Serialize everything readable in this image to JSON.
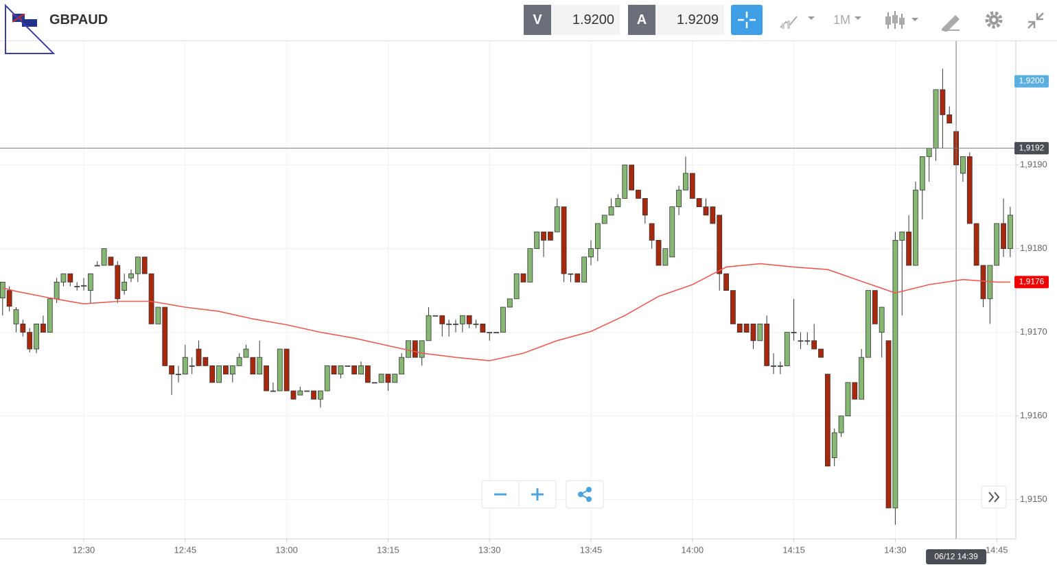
{
  "toolbar": {
    "symbol": "GBPAUD",
    "bid_label": "V",
    "bid": "1.9200",
    "ask_label": "A",
    "ask": "1.9209",
    "timeframe": "1M"
  },
  "chart_data": {
    "type": "candlestick",
    "up_color": "#86b874",
    "down_color": "#a8280e",
    "grid": true,
    "x": [
      "12:18",
      "12:19",
      "12:20",
      "12:21",
      "12:22",
      "12:23",
      "12:24",
      "12:25",
      "12:26",
      "12:27",
      "12:28",
      "12:29",
      "12:30",
      "12:31",
      "12:32",
      "12:33",
      "12:34",
      "12:35",
      "12:36",
      "12:37",
      "12:38",
      "12:39",
      "12:40",
      "12:41",
      "12:42",
      "12:43",
      "12:44",
      "12:45",
      "12:46",
      "12:47",
      "12:48",
      "12:49",
      "12:50",
      "12:51",
      "12:52",
      "12:53",
      "12:54",
      "12:55",
      "12:56",
      "12:57",
      "12:58",
      "12:59",
      "13:00",
      "13:01",
      "13:02",
      "13:03",
      "13:04",
      "13:05",
      "13:06",
      "13:07",
      "13:08",
      "13:09",
      "13:10",
      "13:11",
      "13:12",
      "13:13",
      "13:14",
      "13:15",
      "13:16",
      "13:17",
      "13:18",
      "13:19",
      "13:20",
      "13:21",
      "13:22",
      "13:23",
      "13:24",
      "13:25",
      "13:26",
      "13:27",
      "13:28",
      "13:29",
      "13:30",
      "13:31",
      "13:32",
      "13:33",
      "13:34",
      "13:35",
      "13:36",
      "13:37",
      "13:38",
      "13:39",
      "13:40",
      "13:41",
      "13:42",
      "13:43",
      "13:44",
      "13:45",
      "13:46",
      "13:47",
      "13:48",
      "13:49",
      "13:50",
      "13:51",
      "13:52",
      "13:53",
      "13:54",
      "13:55",
      "13:56",
      "13:57",
      "13:58",
      "13:59",
      "14:00",
      "14:01",
      "14:02",
      "14:03",
      "14:04",
      "14:05",
      "14:06",
      "14:07",
      "14:08",
      "14:09",
      "14:10",
      "14:11",
      "14:12",
      "14:13",
      "14:14",
      "14:15",
      "14:16",
      "14:17",
      "14:18",
      "14:19",
      "14:20",
      "14:21",
      "14:22",
      "14:23",
      "14:24",
      "14:25",
      "14:26",
      "14:27",
      "14:28",
      "14:29",
      "14:30",
      "14:31",
      "14:32",
      "14:33",
      "14:34",
      "14:35",
      "14:36",
      "14:37",
      "14:38",
      "14:39",
      "14:40",
      "14:41",
      "14:42",
      "14:43",
      "14:44",
      "14:45",
      "14:46",
      "14:47"
    ],
    "ohlc": [
      [
        1.91741,
        1.9176,
        1.9172,
        1.9176
      ],
      [
        1.9175,
        1.91755,
        1.91725,
        1.91731
      ],
      [
        1.9171,
        1.9173,
        1.917,
        1.91727
      ],
      [
        1.9171,
        1.91715,
        1.91695,
        1.917
      ],
      [
        1.917,
        1.91705,
        1.91676,
        1.9168
      ],
      [
        1.9168,
        1.9171,
        1.91675,
        1.9171
      ],
      [
        1.9171,
        1.9172,
        1.917,
        1.917
      ],
      [
        1.917,
        1.9174,
        1.917,
        1.9174
      ],
      [
        1.9174,
        1.91765,
        1.91735,
        1.9176
      ],
      [
        1.9176,
        1.9177,
        1.91755,
        1.9177
      ],
      [
        1.9177,
        1.9177,
        1.91755,
        1.9176
      ],
      [
        1.91755,
        1.9176,
        1.9175,
        1.91755
      ],
      [
        1.91755,
        1.91765,
        1.9175,
        1.91756
      ],
      [
        1.9175,
        1.9177,
        1.91735,
        1.9177
      ],
      [
        1.9178,
        1.91785,
        1.9178,
        1.9178
      ],
      [
        1.9178,
        1.918,
        1.9178,
        1.918
      ],
      [
        1.9179,
        1.9179,
        1.9178,
        1.9178
      ],
      [
        1.9178,
        1.91785,
        1.91735,
        1.9174
      ],
      [
        1.9175,
        1.9177,
        1.91745,
        1.9176
      ],
      [
        1.91765,
        1.91775,
        1.9176,
        1.9177
      ],
      [
        1.9177,
        1.9179,
        1.9176,
        1.9179
      ],
      [
        1.9179,
        1.9179,
        1.9177,
        1.9177
      ],
      [
        1.9177,
        1.9177,
        1.9171,
        1.9171
      ],
      [
        1.9171,
        1.9173,
        1.9171,
        1.9173
      ],
      [
        1.9173,
        1.9173,
        1.9166,
        1.9166
      ],
      [
        1.9166,
        1.9166,
        1.91625,
        1.9165
      ],
      [
        1.9165,
        1.9166,
        1.9164,
        1.9165
      ],
      [
        1.9165,
        1.91685,
        1.9165,
        1.9167
      ],
      [
        1.9166,
        1.9167,
        1.9165,
        1.9166
      ],
      [
        1.9168,
        1.9169,
        1.9166,
        1.9166
      ],
      [
        1.9167,
        1.9167,
        1.9166,
        1.9166
      ],
      [
        1.9166,
        1.9166,
        1.9164,
        1.9164
      ],
      [
        1.9164,
        1.9166,
        1.9164,
        1.9166
      ],
      [
        1.9166,
        1.9166,
        1.9165,
        1.9165
      ],
      [
        1.9165,
        1.9166,
        1.9164,
        1.9166
      ],
      [
        1.9166,
        1.91675,
        1.9166,
        1.9167
      ],
      [
        1.9167,
        1.91685,
        1.9167,
        1.9168
      ],
      [
        1.9167,
        1.9167,
        1.9165,
        1.9165
      ],
      [
        1.9165,
        1.9169,
        1.9165,
        1.9167
      ],
      [
        1.9166,
        1.9166,
        1.9163,
        1.9163
      ],
      [
        1.9163,
        1.9164,
        1.9163,
        1.9163
      ],
      [
        1.9163,
        1.9168,
        1.9163,
        1.9168
      ],
      [
        1.9168,
        1.9168,
        1.9163,
        1.9163
      ],
      [
        1.9163,
        1.9163,
        1.9162,
        1.9162
      ],
      [
        1.91625,
        1.91635,
        1.91625,
        1.9163
      ],
      [
        1.9163,
        1.9163,
        1.9163,
        1.9163
      ],
      [
        1.9163,
        1.9163,
        1.9162,
        1.9162
      ],
      [
        1.9162,
        1.9163,
        1.9161,
        1.9163
      ],
      [
        1.9163,
        1.9166,
        1.9163,
        1.9166
      ],
      [
        1.9166,
        1.9166,
        1.9165,
        1.9165
      ],
      [
        1.9165,
        1.9166,
        1.91645,
        1.9166
      ],
      [
        1.9166,
        1.9166,
        1.9166,
        1.9166
      ],
      [
        1.9166,
        1.9166,
        1.9165,
        1.9165
      ],
      [
        1.9165,
        1.91665,
        1.9165,
        1.9166
      ],
      [
        1.9166,
        1.9166,
        1.9164,
        1.9164
      ],
      [
        1.9164,
        1.9164,
        1.9164,
        1.9164
      ],
      [
        1.9164,
        1.9165,
        1.9164,
        1.9165
      ],
      [
        1.9165,
        1.9165,
        1.9163,
        1.9164
      ],
      [
        1.9164,
        1.9165,
        1.9164,
        1.9165
      ],
      [
        1.9165,
        1.91675,
        1.9165,
        1.9167
      ],
      [
        1.9167,
        1.9169,
        1.9167,
        1.9169
      ],
      [
        1.9169,
        1.9169,
        1.9167,
        1.9167
      ],
      [
        1.9167,
        1.9169,
        1.9166,
        1.9169
      ],
      [
        1.9169,
        1.9173,
        1.9169,
        1.9172
      ],
      [
        1.9172,
        1.9172,
        1.9172,
        1.9172
      ],
      [
        1.9172,
        1.9172,
        1.91695,
        1.9171
      ],
      [
        1.9171,
        1.91715,
        1.91695,
        1.9171
      ],
      [
        1.9171,
        1.91715,
        1.917,
        1.9171
      ],
      [
        1.9171,
        1.9172,
        1.917,
        1.9172
      ],
      [
        1.9172,
        1.9172,
        1.91705,
        1.9171
      ],
      [
        1.9171,
        1.91715,
        1.91705,
        1.9171
      ],
      [
        1.9171,
        1.9171,
        1.917,
        1.917
      ],
      [
        1.917,
        1.917,
        1.9169,
        1.917
      ],
      [
        1.917,
        1.917,
        1.917,
        1.917
      ],
      [
        1.917,
        1.9173,
        1.917,
        1.9173
      ],
      [
        1.9173,
        1.9174,
        1.9173,
        1.9174
      ],
      [
        1.9174,
        1.9177,
        1.9174,
        1.9177
      ],
      [
        1.9177,
        1.9177,
        1.9176,
        1.9176
      ],
      [
        1.9176,
        1.918,
        1.9176,
        1.918
      ],
      [
        1.918,
        1.9182,
        1.918,
        1.9182
      ],
      [
        1.9182,
        1.9182,
        1.9179,
        1.9181
      ],
      [
        1.9182,
        1.9182,
        1.9181,
        1.9181
      ],
      [
        1.9182,
        1.9186,
        1.9182,
        1.9185
      ],
      [
        1.9185,
        1.9185,
        1.9176,
        1.9177
      ],
      [
        1.9177,
        1.9177,
        1.9176,
        1.9177
      ],
      [
        1.9177,
        1.9177,
        1.9176,
        1.9176
      ],
      [
        1.9176,
        1.9179,
        1.9176,
        1.9179
      ],
      [
        1.9179,
        1.9181,
        1.9178,
        1.918
      ],
      [
        1.918,
        1.9183,
        1.91785,
        1.9183
      ],
      [
        1.9183,
        1.9184,
        1.9183,
        1.9184
      ],
      [
        1.9184,
        1.9186,
        1.9184,
        1.9185
      ],
      [
        1.9185,
        1.91865,
        1.9185,
        1.9186
      ],
      [
        1.9186,
        1.919,
        1.9186,
        1.919
      ],
      [
        1.919,
        1.919,
        1.9187,
        1.9187
      ],
      [
        1.9187,
        1.9187,
        1.9186,
        1.9186
      ],
      [
        1.9186,
        1.9186,
        1.9183,
        1.9184
      ],
      [
        1.9183,
        1.9183,
        1.918,
        1.9181
      ],
      [
        1.9181,
        1.9181,
        1.9178,
        1.9178
      ],
      [
        1.9178,
        1.918,
        1.9178,
        1.918
      ],
      [
        1.9179,
        1.9185,
        1.9179,
        1.9185
      ],
      [
        1.9185,
        1.91875,
        1.9184,
        1.9187
      ],
      [
        1.9187,
        1.9191,
        1.9187,
        1.9189
      ],
      [
        1.9189,
        1.9189,
        1.9186,
        1.9186
      ],
      [
        1.9186,
        1.9186,
        1.9185,
        1.9185
      ],
      [
        1.9185,
        1.9186,
        1.9184,
        1.9184
      ],
      [
        1.9185,
        1.9185,
        1.9183,
        1.9183
      ],
      [
        1.9184,
        1.9184,
        1.9175,
        1.9177
      ],
      [
        1.9177,
        1.9177,
        1.9175,
        1.9175
      ],
      [
        1.9175,
        1.9175,
        1.9171,
        1.9171
      ],
      [
        1.9171,
        1.9171,
        1.917,
        1.917
      ],
      [
        1.9171,
        1.9171,
        1.917,
        1.917
      ],
      [
        1.9171,
        1.9171,
        1.9168,
        1.9169
      ],
      [
        1.9169,
        1.9171,
        1.9169,
        1.9171
      ],
      [
        1.9171,
        1.9172,
        1.9166,
        1.9166
      ],
      [
        1.9166,
        1.91675,
        1.9165,
        1.9166
      ],
      [
        1.9166,
        1.91665,
        1.9165,
        1.9166
      ],
      [
        1.9166,
        1.917,
        1.9166,
        1.917
      ],
      [
        1.917,
        1.9174,
        1.9169,
        1.917
      ],
      [
        1.9169,
        1.917,
        1.9168,
        1.9169
      ],
      [
        1.9169,
        1.917,
        1.91685,
        1.9169
      ],
      [
        1.9169,
        1.9171,
        1.9168,
        1.9168
      ],
      [
        1.9168,
        1.9168,
        1.9167,
        1.9167
      ],
      [
        1.9165,
        1.9165,
        1.9154,
        1.9154
      ],
      [
        1.9155,
        1.91585,
        1.9154,
        1.9158
      ],
      [
        1.9158,
        1.916,
        1.91575,
        1.916
      ],
      [
        1.916,
        1.9164,
        1.916,
        1.9164
      ],
      [
        1.9164,
        1.9164,
        1.9162,
        1.9162
      ],
      [
        1.9162,
        1.9168,
        1.9162,
        1.9167
      ],
      [
        1.9167,
        1.9175,
        1.9167,
        1.9175
      ],
      [
        1.9175,
        1.9175,
        1.9171,
        1.9171
      ],
      [
        1.917,
        1.9173,
        1.9167,
        1.9173
      ],
      [
        1.9169,
        1.9169,
        1.9149,
        1.9149
      ],
      [
        1.9149,
        1.9182,
        1.9147,
        1.9181
      ],
      [
        1.9181,
        1.9182,
        1.9172,
        1.9182
      ],
      [
        1.9182,
        1.9184,
        1.9178,
        1.9178
      ],
      [
        1.9178,
        1.9188,
        1.9178,
        1.9187
      ],
      [
        1.9187,
        1.9191,
        1.91835,
        1.9191
      ],
      [
        1.9191,
        1.9192,
        1.9188,
        1.9192
      ],
      [
        1.9192,
        1.9199,
        1.91905,
        1.9199
      ],
      [
        1.9199,
        1.92015,
        1.9192,
        1.9196
      ],
      [
        1.9196,
        1.9197,
        1.9195,
        1.9195
      ],
      [
        1.9194,
        1.9194,
        1.919,
        1.919
      ],
      [
        1.9189,
        1.9191,
        1.9188,
        1.9191
      ],
      [
        1.9191,
        1.91915,
        1.9183,
        1.9183
      ],
      [
        1.9183,
        1.9183,
        1.9178,
        1.9178
      ],
      [
        1.9178,
        1.9178,
        1.9173,
        1.9174
      ],
      [
        1.9174,
        1.9178,
        1.9171,
        1.9178
      ],
      [
        1.9178,
        1.9183,
        1.9178,
        1.9183
      ],
      [
        1.9183,
        1.9186,
        1.9179,
        1.918
      ],
      [
        1.918,
        1.9185,
        1.9179,
        1.9184
      ]
    ],
    "overlay": {
      "color": "#ec5a52",
      "x": [
        "12:18",
        "12:20",
        "12:25",
        "12:30",
        "12:35",
        "12:40",
        "12:45",
        "12:50",
        "12:55",
        "13:00",
        "13:05",
        "13:10",
        "13:15",
        "13:20",
        "13:25",
        "13:30",
        "13:35",
        "13:40",
        "13:45",
        "13:50",
        "13:55",
        "14:00",
        "14:05",
        "14:10",
        "14:15",
        "14:20",
        "14:25",
        "14:30",
        "14:35",
        "14:40",
        "14:45",
        "14:47"
      ],
      "values": [
        1.91753,
        1.91749,
        1.91741,
        1.91734,
        1.91737,
        1.91737,
        1.9173,
        1.91725,
        1.91716,
        1.91709,
        1.917,
        1.91693,
        1.91684,
        1.91675,
        1.9167,
        1.91666,
        1.91675,
        1.9169,
        1.91701,
        1.9172,
        1.91743,
        1.91757,
        1.91778,
        1.91782,
        1.91778,
        1.91775,
        1.91761,
        1.91747,
        1.91757,
        1.91763,
        1.9176,
        1.9176
      ]
    },
    "ylim": [
      1.91453,
      1.92048
    ],
    "yticks": [
      {
        "value": 1.915,
        "label": "1,9150"
      },
      {
        "value": 1.916,
        "label": "1,9160"
      },
      {
        "value": 1.917,
        "label": "1,9170"
      },
      {
        "value": 1.918,
        "label": "1,9180"
      },
      {
        "value": 1.919,
        "label": "1,9190"
      }
    ],
    "xticks": [
      "12:30",
      "12:45",
      "13:00",
      "13:15",
      "13:30",
      "13:45",
      "14:00",
      "14:15",
      "14:30",
      "14:45"
    ],
    "price_labels": [
      {
        "value": 1.92,
        "label": "1,9200",
        "color": "#5aaee0"
      },
      {
        "value": 1.9192,
        "label": "1,9192",
        "color": "#4b4d55"
      },
      {
        "value": 1.9176,
        "label": "1,9176",
        "color": "#ee0000"
      }
    ],
    "crosshair": {
      "x": "14:39",
      "y": 1.9192,
      "label": "06/12 14:39"
    }
  }
}
